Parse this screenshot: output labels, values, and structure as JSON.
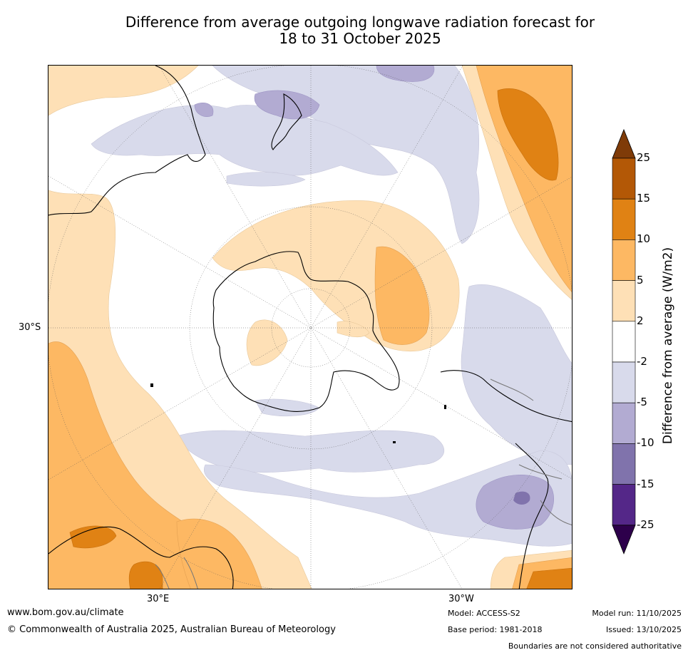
{
  "title": {
    "line1": "Difference from average outgoing longwave radiation forecast for",
    "line2": "18 to 31 October 2025"
  },
  "map": {
    "projection": "South polar stereographic",
    "lat_label": "30°S",
    "lon_labels": {
      "east": "30°E",
      "west": "30°W"
    }
  },
  "colorbar": {
    "title": "Difference from average (W/m2)",
    "ticks": [
      "25",
      "15",
      "10",
      "5",
      "2",
      "-2",
      "-5",
      "-10",
      "-15",
      "-25"
    ],
    "colors": [
      "#7f3b08",
      "#b35806",
      "#e08214",
      "#fdb863",
      "#fee0b6",
      "#ffffff",
      "#d8daeb",
      "#b2abd2",
      "#8073ac",
      "#542788",
      "#2d004b"
    ]
  },
  "footer": {
    "website": "www.bom.gov.au/climate",
    "copyright": "© Commonwealth of Australia 2025, Australian Bureau of Meteorology",
    "model": "Model: ACCESS-S2",
    "base_period": "Base period: 1981-2018",
    "model_run": "Model run: 11/10/2025",
    "issued": "Issued: 13/10/2025",
    "disclaimer": "Boundaries are not considered authoritative"
  }
}
